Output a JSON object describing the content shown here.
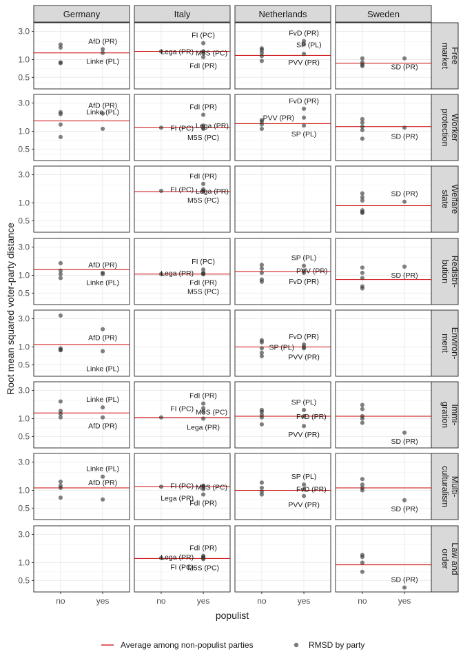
{
  "chart_data": {
    "type": "scatter",
    "columns": [
      "Germany",
      "Italy",
      "Netherlands",
      "Sweden"
    ],
    "rows": [
      {
        "key": "free_market",
        "label": [
          "Free",
          "market"
        ]
      },
      {
        "key": "worker_protection",
        "label": [
          "Worker",
          "protection"
        ]
      },
      {
        "key": "welfare_state",
        "label": [
          "Welfare",
          "state"
        ]
      },
      {
        "key": "redistribution",
        "label": [
          "Redistri-",
          "bution"
        ]
      },
      {
        "key": "environment",
        "label": [
          "Environ-",
          "ment"
        ]
      },
      {
        "key": "immigration",
        "label": [
          "Immi-",
          "gration"
        ]
      },
      {
        "key": "multiculturalism",
        "label": [
          "Multi-",
          "culturalism"
        ]
      },
      {
        "key": "law_and_order",
        "label": [
          "Law and",
          "order"
        ]
      }
    ],
    "x_categories": [
      "no",
      "yes"
    ],
    "xlabel": "populist",
    "ylabel": "Root mean squared voter-party distance",
    "y_scale": "log",
    "yticks": [
      0.5,
      1.0,
      3.0
    ],
    "ytick_labels": [
      "0.5",
      "1.0",
      "3.0"
    ],
    "ylim": [
      0.32,
      4.2
    ],
    "grid": true,
    "colors": {
      "line": "#cc0000",
      "point": "#333333",
      "strip_fill": "#d9d9d9",
      "grid": "#ebebeb",
      "border": "#333333"
    },
    "legend": {
      "position": "bottom",
      "items": [
        {
          "kind": "line",
          "label": "Average among non-populist parties"
        },
        {
          "kind": "point",
          "label": "RMSD by party"
        }
      ]
    },
    "panels": [
      {
        "row": 0,
        "col": 0,
        "avg": 1.3,
        "no": [
          1.8,
          1.6,
          0.9,
          0.87
        ],
        "yes": [
          {
            "v": 1.5,
            "label": "AfD (PR)",
            "pos": "above"
          },
          {
            "v": 1.3,
            "label": "Linke (PL)",
            "pos": "below"
          }
        ]
      },
      {
        "row": 0,
        "col": 1,
        "avg": 1.38,
        "no": [
          1.38
        ],
        "yes": [
          {
            "v": 1.9,
            "label": "FI (PC)",
            "pos": "above"
          },
          {
            "v": 1.38,
            "label": "Lega (PR)",
            "pos": "left"
          },
          {
            "v": 1.3,
            "label": "M5S (PC)",
            "pos": "right"
          },
          {
            "v": 1.1,
            "label": "FdI (PR)",
            "pos": "below"
          }
        ]
      },
      {
        "row": 0,
        "col": 2,
        "avg": 1.18,
        "no": [
          1.55,
          1.45,
          1.3,
          1.15,
          0.95
        ],
        "yes": [
          {
            "v": 2.05,
            "label": "FvD (PR)",
            "pos": "above"
          },
          {
            "v": 1.8,
            "label": "SP (PL)",
            "pos": "right"
          },
          {
            "v": 1.25,
            "label": "PVV (PR)",
            "pos": "below"
          }
        ]
      },
      {
        "row": 0,
        "col": 3,
        "avg": 0.87,
        "no": [
          1.05,
          0.9,
          0.82,
          0.78
        ],
        "yes": [
          {
            "v": 1.05,
            "label": "SD (PR)",
            "pos": "below"
          }
        ]
      },
      {
        "row": 1,
        "col": 0,
        "avg": 1.5,
        "no": [
          2.1,
          1.95,
          1.3,
          0.8
        ],
        "yes": [
          {
            "v": 2.0,
            "label": "AfD (PR)",
            "pos": "above"
          },
          {
            "v": 1.1,
            "label": "Linke (PL)",
            "pos": "above"
          }
        ]
      },
      {
        "row": 1,
        "col": 1,
        "avg": 1.15,
        "no": [
          1.15
        ],
        "yes": [
          {
            "v": 1.9,
            "label": "FdI (PR)",
            "pos": "above"
          },
          {
            "v": 1.25,
            "label": "Lega (PR)",
            "pos": "right"
          },
          {
            "v": 1.15,
            "label": "FI (PC)",
            "pos": "left"
          },
          {
            "v": 1.1,
            "label": "M5S (PC)",
            "pos": "below"
          }
        ]
      },
      {
        "row": 1,
        "col": 2,
        "avg": 1.35,
        "no": [
          1.55,
          1.45,
          1.3,
          1.1
        ],
        "yes": [
          {
            "v": 2.4,
            "label": "FvD (PR)",
            "pos": "above"
          },
          {
            "v": 1.7,
            "label": "PVV (PR)",
            "pos": "left"
          },
          {
            "v": 1.25,
            "label": "SP (PL)",
            "pos": "below"
          }
        ]
      },
      {
        "row": 1,
        "col": 3,
        "avg": 1.2,
        "no": [
          1.6,
          1.4,
          1.2,
          1.05,
          0.75
        ],
        "yes": [
          {
            "v": 1.15,
            "label": "SD (PR)",
            "pos": "below"
          }
        ]
      },
      {
        "row": 2,
        "col": 1,
        "avg": 1.55,
        "no": [
          1.6
        ],
        "yes": [
          {
            "v": 2.1,
            "label": "FdI (PR)",
            "pos": "above"
          },
          {
            "v": 1.7,
            "label": "FI (PC)",
            "pos": "left"
          },
          {
            "v": 1.6,
            "label": "Lega (PR)",
            "pos": "right"
          },
          {
            "v": 1.55,
            "label": "M5S (PC)",
            "pos": "below"
          }
        ]
      },
      {
        "row": 2,
        "col": 3,
        "avg": 0.9,
        "no": [
          1.45,
          1.25,
          1.1,
          0.75,
          0.7,
          0.68
        ],
        "yes": [
          {
            "v": 1.05,
            "label": "SD (PR)",
            "pos": "above"
          }
        ]
      },
      {
        "row": 3,
        "col": 0,
        "avg": 1.25,
        "no": [
          1.6,
          1.2,
          1.05,
          0.9
        ],
        "yes": [
          {
            "v": 1.1,
            "label": "AfD (PR)",
            "pos": "above"
          },
          {
            "v": 1.05,
            "label": "Linke (PL)",
            "pos": "below"
          }
        ]
      },
      {
        "row": 3,
        "col": 1,
        "avg": 1.05,
        "no": [
          1.05
        ],
        "yes": [
          {
            "v": 1.25,
            "label": "FI (PC)",
            "pos": "above"
          },
          {
            "v": 1.1,
            "label": "Lega (PR)",
            "pos": "left"
          },
          {
            "v": 1.05,
            "label": "FdI (PR)",
            "pos": "below"
          },
          {
            "v": 1.05,
            "label": "M5S (PC)",
            "pos": "below"
          }
        ]
      },
      {
        "row": 3,
        "col": 2,
        "avg": 1.15,
        "no": [
          1.5,
          1.3,
          1.1,
          0.85,
          0.78
        ],
        "yes": [
          {
            "v": 1.45,
            "label": "SP (PL)",
            "pos": "above"
          },
          {
            "v": 1.2,
            "label": "PVV (PR)",
            "pos": "right"
          },
          {
            "v": 1.1,
            "label": "FvD (PR)",
            "pos": "below"
          }
        ]
      },
      {
        "row": 3,
        "col": 3,
        "avg": 0.85,
        "no": [
          1.35,
          1.1,
          0.9,
          0.65,
          0.6
        ],
        "yes": [
          {
            "v": 1.4,
            "label": "SD (PR)",
            "pos": "below"
          }
        ]
      },
      {
        "row": 4,
        "col": 0,
        "avg": 1.1,
        "no": [
          3.4,
          0.95,
          0.9,
          0.88
        ],
        "yes": [
          {
            "v": 2.0,
            "label": "AfD (PR)",
            "pos": "below"
          },
          {
            "v": 0.85,
            "label": "Linke (PL)",
            "pos": "below"
          }
        ]
      },
      {
        "row": 4,
        "col": 2,
        "avg": 1.0,
        "no": [
          1.3,
          1.2,
          0.95,
          0.8,
          0.7
        ],
        "yes": [
          {
            "v": 1.1,
            "label": "FvD (PR)",
            "pos": "above"
          },
          {
            "v": 1.0,
            "label": "SP (PL)",
            "pos": "left"
          },
          {
            "v": 0.95,
            "label": "PVV (PR)",
            "pos": "below"
          }
        ]
      },
      {
        "row": 5,
        "col": 0,
        "avg": 1.25,
        "no": [
          1.95,
          1.35,
          1.2,
          1.05
        ],
        "yes": [
          {
            "v": 1.55,
            "label": "Linke (PL)",
            "pos": "above"
          },
          {
            "v": 1.05,
            "label": "AfD (PR)",
            "pos": "below"
          }
        ]
      },
      {
        "row": 5,
        "col": 1,
        "avg": 1.05,
        "no": [
          1.05
        ],
        "yes": [
          {
            "v": 1.8,
            "label": "FdI (PR)",
            "pos": "above"
          },
          {
            "v": 1.5,
            "label": "FI (PC)",
            "pos": "left"
          },
          {
            "v": 1.3,
            "label": "M5S (PC)",
            "pos": "right"
          },
          {
            "v": 1.0,
            "label": "Lega (PR)",
            "pos": "below"
          }
        ]
      },
      {
        "row": 5,
        "col": 2,
        "avg": 1.1,
        "no": [
          1.4,
          1.3,
          1.15,
          1.05,
          0.8
        ],
        "yes": [
          {
            "v": 1.4,
            "label": "SP (PL)",
            "pos": "above"
          },
          {
            "v": 1.1,
            "label": "FvD (PR)",
            "pos": "right"
          },
          {
            "v": 0.75,
            "label": "PVV (PR)",
            "pos": "below"
          }
        ]
      },
      {
        "row": 5,
        "col": 3,
        "avg": 1.1,
        "no": [
          1.7,
          1.45,
          1.1,
          1.0,
          0.85
        ],
        "yes": [
          {
            "v": 0.58,
            "label": "SD (PR)",
            "pos": "below"
          }
        ]
      },
      {
        "row": 6,
        "col": 0,
        "avg": 1.1,
        "no": [
          1.4,
          1.2,
          1.1,
          0.75
        ],
        "yes": [
          {
            "v": 1.7,
            "label": "Linke (PL)",
            "pos": "above"
          },
          {
            "v": 0.7,
            "label": "AfD (PR)",
            "pos": "above"
          }
        ]
      },
      {
        "row": 6,
        "col": 1,
        "avg": 1.15,
        "no": [
          1.15
        ],
        "yes": [
          {
            "v": 1.2,
            "label": "FI (PC)",
            "pos": "left"
          },
          {
            "v": 1.15,
            "label": "M5S (PC)",
            "pos": "right"
          },
          {
            "v": 1.05,
            "label": "Lega (PR)",
            "pos": "left"
          },
          {
            "v": 0.85,
            "label": "FdI (PR)",
            "pos": "below"
          }
        ]
      },
      {
        "row": 6,
        "col": 2,
        "avg": 1.0,
        "no": [
          1.35,
          1.1,
          0.95,
          0.85
        ],
        "yes": [
          {
            "v": 1.25,
            "label": "SP (PL)",
            "pos": "above"
          },
          {
            "v": 1.05,
            "label": "FvD (PR)",
            "pos": "right"
          },
          {
            "v": 0.8,
            "label": "PVV (PR)",
            "pos": "below"
          }
        ]
      },
      {
        "row": 6,
        "col": 3,
        "avg": 1.1,
        "no": [
          1.55,
          1.25,
          1.1,
          1.0
        ],
        "yes": [
          {
            "v": 0.68,
            "label": "SD (PR)",
            "pos": "below"
          }
        ]
      },
      {
        "row": 7,
        "col": 1,
        "avg": 1.18,
        "no": [
          1.2
        ],
        "yes": [
          {
            "v": 1.3,
            "label": "FdI (PR)",
            "pos": "above"
          },
          {
            "v": 1.25,
            "label": "Lega (PR)",
            "pos": "left"
          },
          {
            "v": 1.2,
            "label": "FI (PC)",
            "pos": "left"
          },
          {
            "v": 1.15,
            "label": "M5S (PC)",
            "pos": "below"
          }
        ]
      },
      {
        "row": 7,
        "col": 3,
        "avg": 0.92,
        "no": [
          1.35,
          1.25,
          1.0,
          0.7
        ],
        "yes": [
          {
            "v": 0.38,
            "label": "SD (PR)",
            "pos": "above"
          }
        ]
      }
    ]
  }
}
